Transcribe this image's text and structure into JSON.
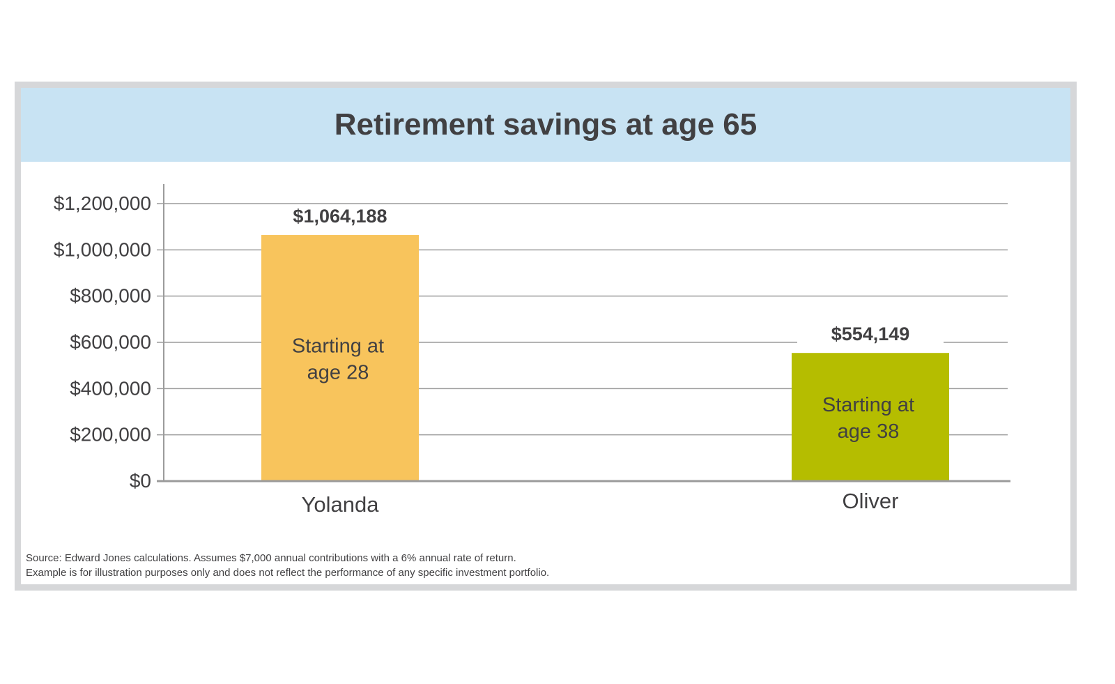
{
  "chart_data": {
    "type": "bar",
    "title": "Retirement savings at age 65",
    "categories": [
      "Yolanda",
      "Oliver"
    ],
    "values": [
      1064188,
      554149
    ],
    "value_labels": [
      "$1,064,188",
      "$554,149"
    ],
    "bar_labels": [
      [
        "Starting at",
        "age 28"
      ],
      [
        "Starting at",
        "age 38"
      ]
    ],
    "colors": [
      "#f8c45c",
      "#b5bd00"
    ],
    "yticks": [
      "$0",
      "$200,000",
      "$400,000",
      "$600,000",
      "$800,000",
      "$1,000,000",
      "$1,200,000"
    ],
    "ytick_values": [
      0,
      200000,
      400000,
      600000,
      800000,
      1000000,
      1200000
    ],
    "ylim": [
      0,
      1200000
    ],
    "grid": true,
    "xlabel": "",
    "ylabel": ""
  },
  "footnote": {
    "line1": "Source: Edward Jones calculations. Assumes $7,000 annual contributions with a 6% annual rate of return.",
    "line2": "Example is for illustration purposes only and does not reflect the performance of any specific investment portfolio."
  },
  "colors": {
    "frame": "#d6d7d9",
    "header_bg": "#c8e3f3",
    "text": "#414042",
    "grid": "#9b9b9b"
  }
}
